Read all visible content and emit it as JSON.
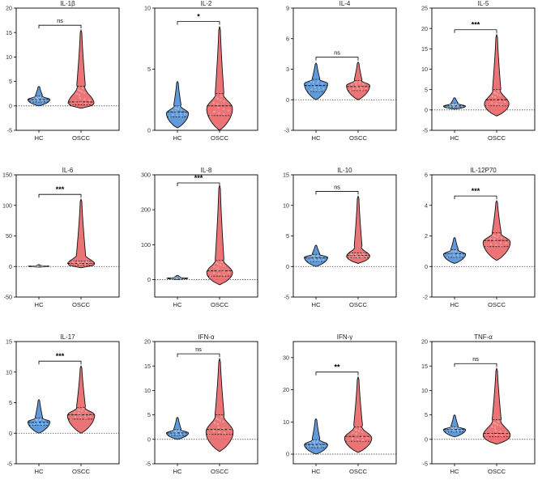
{
  "colors": {
    "hc": "#4f8fd6",
    "oscc": "#e96567",
    "frame": "#000000",
    "zero_line": "#444444"
  },
  "chart_data": [
    {
      "type": "violin",
      "title": "IL-1β",
      "ylim": [
        -5,
        20
      ],
      "yticks": [
        -5,
        0,
        5,
        10,
        15,
        20
      ],
      "categories": [
        "HC",
        "OSCC"
      ],
      "significance": "ns",
      "series": [
        {
          "name": "HC",
          "min": 0,
          "q1": 0.8,
          "median": 1.3,
          "q3": 2.0,
          "max": 4.0,
          "peak": 1.3,
          "half_width": 0.34
        },
        {
          "name": "OSCC",
          "min": -0.5,
          "q1": 0.2,
          "median": 0.8,
          "q3": 4.0,
          "max": 15.5,
          "peak": 0.5,
          "half_width": 0.4
        }
      ]
    },
    {
      "type": "violin",
      "title": "IL-2",
      "ylim": [
        0,
        10
      ],
      "yticks": [
        0,
        5,
        10
      ],
      "categories": [
        "HC",
        "OSCC"
      ],
      "significance": "*",
      "series": [
        {
          "name": "HC",
          "min": 0.2,
          "q1": 1.1,
          "median": 1.5,
          "q3": 2.0,
          "max": 4.0,
          "peak": 1.4,
          "half_width": 0.34
        },
        {
          "name": "OSCC",
          "min": 0.0,
          "q1": 1.2,
          "median": 2.0,
          "q3": 3.0,
          "max": 8.5,
          "peak": 1.8,
          "half_width": 0.4
        }
      ]
    },
    {
      "type": "violin",
      "title": "IL-4",
      "ylim": [
        -3,
        9
      ],
      "yticks": [
        -3,
        0,
        3,
        6,
        9
      ],
      "categories": [
        "HC",
        "OSCC"
      ],
      "significance": "ns",
      "series": [
        {
          "name": "HC",
          "min": 0.0,
          "q1": 0.8,
          "median": 1.4,
          "q3": 2.0,
          "max": 3.6,
          "peak": 1.6,
          "half_width": 0.36
        },
        {
          "name": "OSCC",
          "min": 0.0,
          "q1": 0.9,
          "median": 1.3,
          "q3": 1.9,
          "max": 3.7,
          "peak": 1.4,
          "half_width": 0.36
        }
      ]
    },
    {
      "type": "violin",
      "title": "IL-5",
      "ylim": [
        -5,
        25
      ],
      "yticks": [
        -5,
        0,
        5,
        10,
        15,
        20,
        25
      ],
      "categories": [
        "HC",
        "OSCC"
      ],
      "significance": "***",
      "series": [
        {
          "name": "HC",
          "min": 0.2,
          "q1": 0.6,
          "median": 1.0,
          "q3": 1.6,
          "max": 3.0,
          "peak": 0.9,
          "half_width": 0.34
        },
        {
          "name": "OSCC",
          "min": -1.5,
          "q1": 1.0,
          "median": 2.5,
          "q3": 5.0,
          "max": 18.5,
          "peak": 1.5,
          "half_width": 0.38
        }
      ]
    },
    {
      "type": "violin",
      "title": "IL-6",
      "ylim": [
        -50,
        150
      ],
      "yticks": [
        -50,
        0,
        50,
        100,
        150
      ],
      "categories": [
        "HC",
        "OSCC"
      ],
      "significance": "***",
      "series": [
        {
          "name": "HC",
          "min": -1,
          "q1": 0,
          "median": 0.5,
          "q3": 1,
          "max": 3,
          "peak": 0.5,
          "half_width": 0.32
        },
        {
          "name": "OSCC",
          "min": -2,
          "q1": 2,
          "median": 5,
          "q3": 9,
          "max": 110,
          "peak": 4,
          "half_width": 0.42
        }
      ]
    },
    {
      "type": "violin",
      "title": "IL-8",
      "ylim": [
        -50,
        300
      ],
      "yticks": [
        0,
        100,
        200,
        300
      ],
      "categories": [
        "HC",
        "OSCC"
      ],
      "significance": "***",
      "series": [
        {
          "name": "HC",
          "min": 0,
          "q1": 2,
          "median": 4,
          "q3": 6,
          "max": 12,
          "peak": 4,
          "half_width": 0.32
        },
        {
          "name": "OSCC",
          "min": -15,
          "q1": 10,
          "median": 25,
          "q3": 55,
          "max": 270,
          "peak": 20,
          "half_width": 0.4
        }
      ]
    },
    {
      "type": "violin",
      "title": "IL-10",
      "ylim": [
        -5,
        15
      ],
      "yticks": [
        -5,
        0,
        5,
        10,
        15
      ],
      "categories": [
        "HC",
        "OSCC"
      ],
      "significance": "ns",
      "series": [
        {
          "name": "HC",
          "min": 0.0,
          "q1": 0.8,
          "median": 1.4,
          "q3": 2.0,
          "max": 3.5,
          "peak": 1.5,
          "half_width": 0.36
        },
        {
          "name": "OSCC",
          "min": 0.5,
          "q1": 1.4,
          "median": 1.8,
          "q3": 2.2,
          "max": 11.5,
          "peak": 1.7,
          "half_width": 0.36
        }
      ]
    },
    {
      "type": "violin",
      "title": "IL-12P70",
      "ylim": [
        -2,
        6
      ],
      "yticks": [
        -2,
        0,
        2,
        4,
        6
      ],
      "categories": [
        "HC",
        "OSCC"
      ],
      "significance": "***",
      "series": [
        {
          "name": "HC",
          "min": 0.2,
          "q1": 0.6,
          "median": 0.85,
          "q3": 1.1,
          "max": 1.9,
          "peak": 0.8,
          "half_width": 0.34
        },
        {
          "name": "OSCC",
          "min": 0.4,
          "q1": 1.3,
          "median": 1.7,
          "q3": 2.2,
          "max": 4.3,
          "peak": 1.6,
          "half_width": 0.42
        }
      ]
    },
    {
      "type": "violin",
      "title": "IL-17",
      "ylim": [
        -5,
        15
      ],
      "yticks": [
        -5,
        0,
        5,
        10,
        15
      ],
      "categories": [
        "HC",
        "OSCC"
      ],
      "significance": "***",
      "series": [
        {
          "name": "HC",
          "min": 0.0,
          "q1": 1.3,
          "median": 1.8,
          "q3": 2.5,
          "max": 5.5,
          "peak": 1.9,
          "half_width": 0.34
        },
        {
          "name": "OSCC",
          "min": 0.0,
          "q1": 2.3,
          "median": 3.0,
          "q3": 4.2,
          "max": 11.0,
          "peak": 3.0,
          "half_width": 0.42
        }
      ]
    },
    {
      "type": "violin",
      "title": "IFN-α",
      "ylim": [
        -5,
        20
      ],
      "yticks": [
        -5,
        0,
        5,
        10,
        15,
        20
      ],
      "categories": [
        "HC",
        "OSCC"
      ],
      "significance": "ns",
      "series": [
        {
          "name": "HC",
          "min": 0.0,
          "q1": 0.8,
          "median": 1.3,
          "q3": 2.0,
          "max": 4.5,
          "peak": 1.3,
          "half_width": 0.34
        },
        {
          "name": "OSCC",
          "min": -2.5,
          "q1": 1.0,
          "median": 2.0,
          "q3": 5.0,
          "max": 16.5,
          "peak": 1.5,
          "half_width": 0.42
        }
      ]
    },
    {
      "type": "violin",
      "title": "IFN-γ",
      "ylim": [
        -3,
        35
      ],
      "yticks": [
        0,
        10,
        20,
        30
      ],
      "categories": [
        "HC",
        "OSCC"
      ],
      "significance": "**",
      "series": [
        {
          "name": "HC",
          "min": 0.0,
          "q1": 2.0,
          "median": 3.0,
          "q3": 4.5,
          "max": 11.0,
          "peak": 3.0,
          "half_width": 0.36
        },
        {
          "name": "OSCC",
          "min": 0.5,
          "q1": 4.0,
          "median": 5.5,
          "q3": 8.5,
          "max": 24.0,
          "peak": 5.0,
          "half_width": 0.42
        }
      ]
    },
    {
      "type": "violin",
      "title": "TNF-α",
      "ylim": [
        -5,
        20
      ],
      "yticks": [
        -5,
        0,
        5,
        10,
        15,
        20
      ],
      "categories": [
        "HC",
        "OSCC"
      ],
      "significance": "ns",
      "series": [
        {
          "name": "HC",
          "min": 0.5,
          "q1": 1.5,
          "median": 2.0,
          "q3": 2.6,
          "max": 5.0,
          "peak": 2.0,
          "half_width": 0.34
        },
        {
          "name": "OSCC",
          "min": -1.0,
          "q1": 0.5,
          "median": 1.2,
          "q3": 4.0,
          "max": 14.5,
          "peak": 0.8,
          "half_width": 0.42
        }
      ]
    }
  ]
}
